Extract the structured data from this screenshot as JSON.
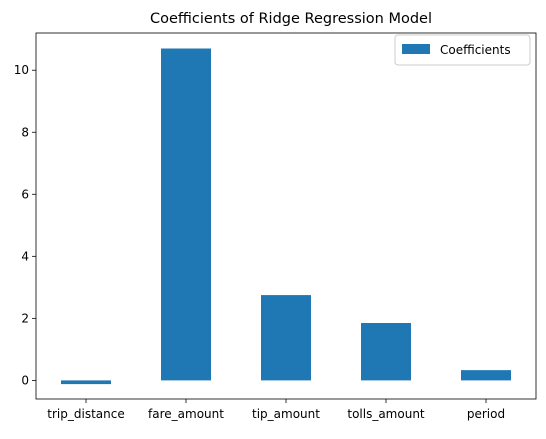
{
  "chart_data": {
    "type": "bar",
    "title": "Coefficients of Ridge Regression Model",
    "xlabel": "",
    "ylabel": "",
    "categories": [
      "trip_distance",
      "fare_amount",
      "tip_amount",
      "tolls_amount",
      "period"
    ],
    "series": [
      {
        "name": "Coefficients",
        "values": [
          -0.12,
          10.7,
          2.75,
          1.85,
          0.33
        ],
        "color": "#1f77b4"
      }
    ],
    "ylim": [
      -0.6,
      11.2
    ],
    "yticks": [
      0,
      2,
      4,
      6,
      8,
      10
    ],
    "grid": false,
    "legend": "top-right"
  }
}
